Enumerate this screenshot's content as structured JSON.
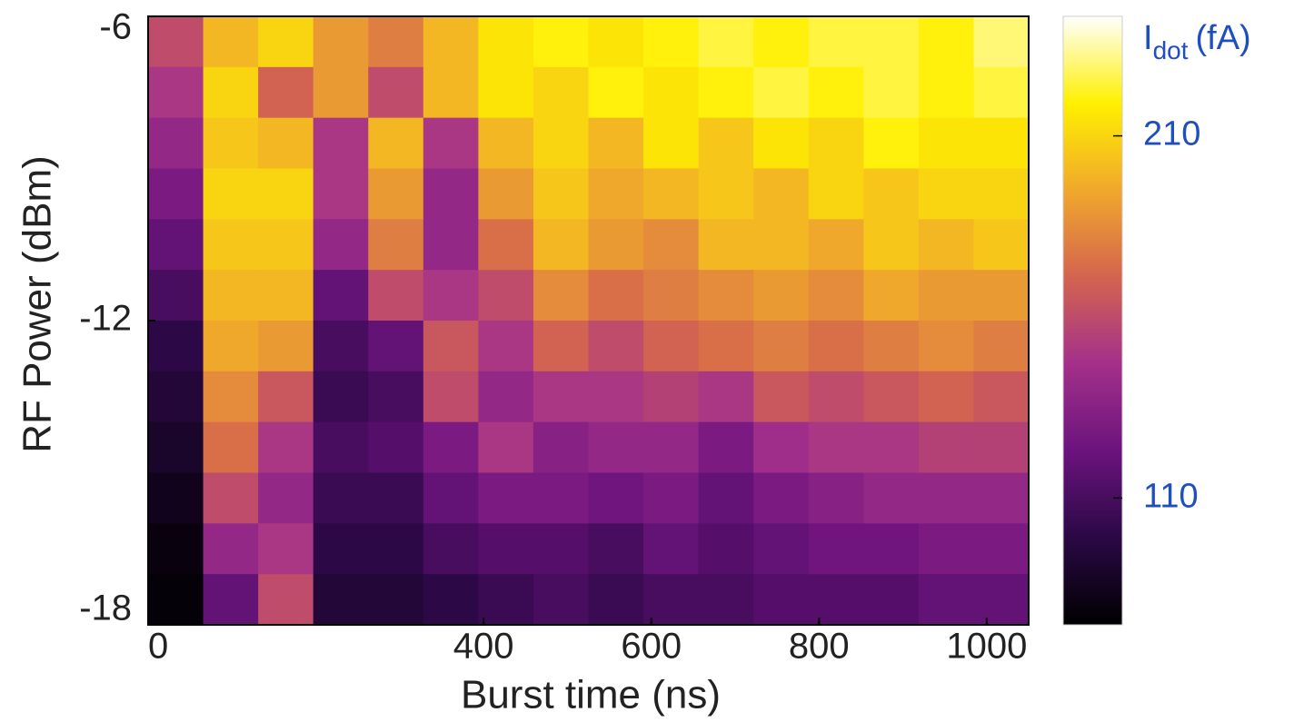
{
  "chart_data": {
    "type": "heatmap",
    "xlabel": "Burst time (ns)",
    "ylabel": "RF Power (dBm)",
    "xlim": [
      0,
      1050
    ],
    "xticks": [
      0,
      400,
      600,
      800,
      1000
    ],
    "ylim": [
      -18,
      -6
    ],
    "yticks": [
      -18,
      -12,
      -6
    ],
    "colorbar": {
      "label": "I",
      "label_sub": "dot",
      "label_unit": "(fA)",
      "clim": [
        75,
        243
      ],
      "ticks": [
        110,
        210
      ]
    },
    "colormap": [
      "#000000",
      "#2a0845",
      "#6b137d",
      "#a3308a",
      "#d4644f",
      "#f0a82c",
      "#fff000",
      "#ffffff"
    ],
    "z": [
      [
        160,
        200,
        210,
        190,
        180,
        200,
        215,
        220,
        215,
        220,
        225,
        220,
        225,
        225,
        220,
        230
      ],
      [
        150,
        210,
        170,
        190,
        160,
        200,
        215,
        210,
        220,
        215,
        220,
        225,
        220,
        225,
        220,
        225
      ],
      [
        140,
        205,
        200,
        150,
        200,
        150,
        200,
        210,
        200,
        215,
        205,
        215,
        210,
        220,
        215,
        215
      ],
      [
        130,
        210,
        210,
        150,
        190,
        140,
        190,
        205,
        195,
        200,
        205,
        200,
        210,
        205,
        210,
        210
      ],
      [
        120,
        205,
        205,
        140,
        180,
        140,
        175,
        200,
        190,
        185,
        200,
        200,
        195,
        205,
        200,
        205
      ],
      [
        110,
        200,
        200,
        120,
        160,
        150,
        160,
        185,
        175,
        180,
        185,
        190,
        185,
        195,
        190,
        190
      ],
      [
        100,
        195,
        190,
        110,
        120,
        165,
        150,
        170,
        160,
        170,
        175,
        180,
        175,
        180,
        185,
        180
      ],
      [
        95,
        185,
        165,
        105,
        110,
        160,
        140,
        150,
        150,
        155,
        150,
        165,
        160,
        165,
        170,
        165
      ],
      [
        90,
        175,
        150,
        110,
        115,
        130,
        150,
        135,
        140,
        140,
        130,
        145,
        150,
        150,
        155,
        155
      ],
      [
        85,
        160,
        140,
        105,
        105,
        120,
        130,
        130,
        125,
        130,
        120,
        130,
        135,
        140,
        140,
        140
      ],
      [
        80,
        140,
        150,
        100,
        100,
        110,
        115,
        115,
        110,
        120,
        115,
        120,
        125,
        125,
        130,
        130
      ],
      [
        78,
        120,
        160,
        95,
        95,
        100,
        105,
        110,
        105,
        110,
        110,
        115,
        115,
        115,
        120,
        120
      ]
    ]
  }
}
